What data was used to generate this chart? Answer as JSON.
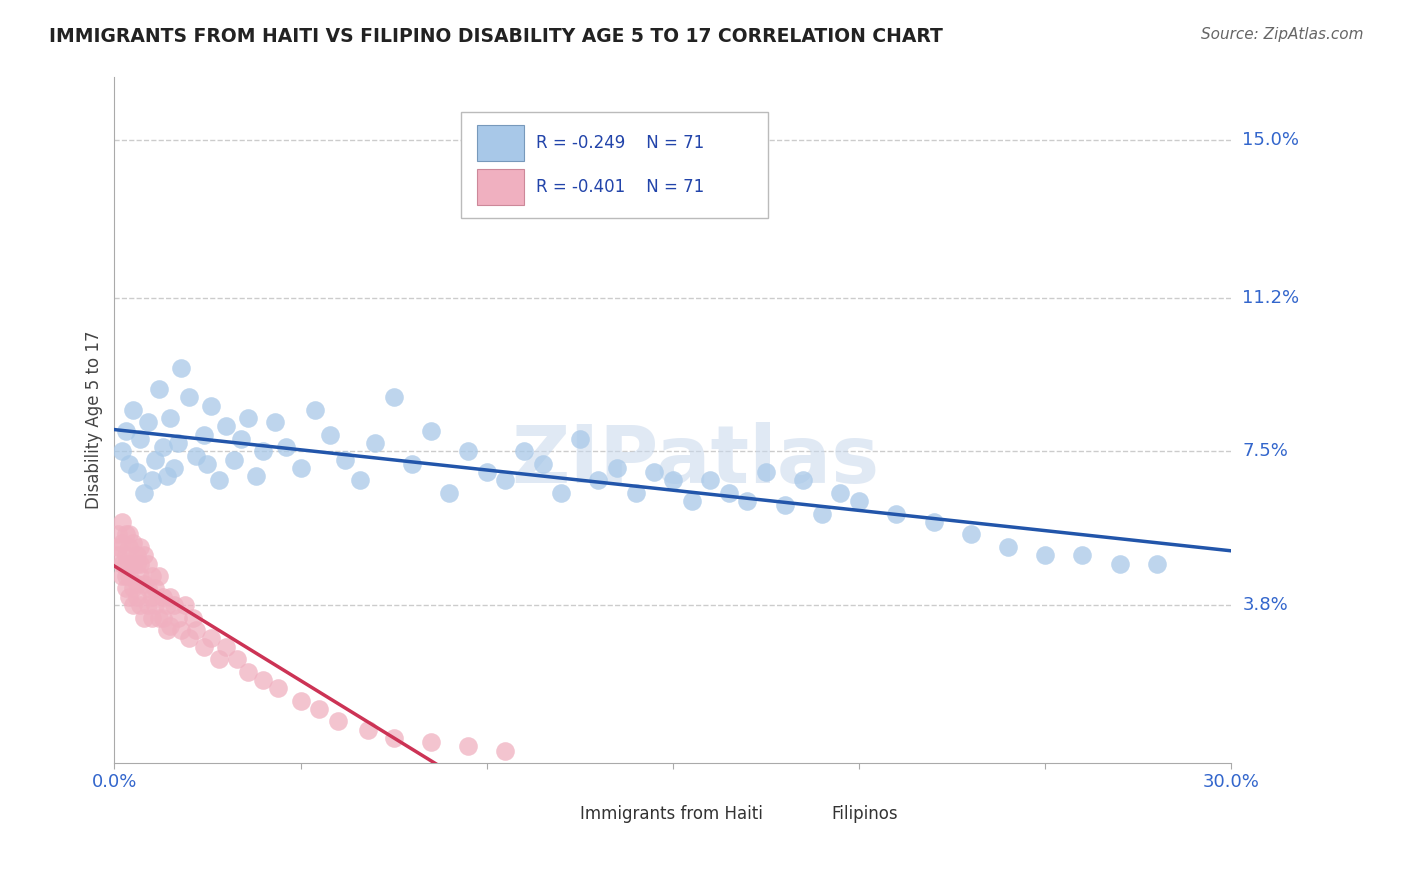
{
  "title": "IMMIGRANTS FROM HAITI VS FILIPINO DISABILITY AGE 5 TO 17 CORRELATION CHART",
  "source": "Source: ZipAtlas.com",
  "ylabel": "Disability Age 5 to 17",
  "xlim": [
    0.0,
    0.3
  ],
  "ylim": [
    0.0,
    0.165
  ],
  "xticks": [
    0.0,
    0.05,
    0.1,
    0.15,
    0.2,
    0.25,
    0.3
  ],
  "xticklabels": [
    "0.0%",
    "",
    "",
    "",
    "",
    "",
    "30.0%"
  ],
  "ytick_positions": [
    0.038,
    0.075,
    0.112,
    0.15
  ],
  "ytick_labels": [
    "3.8%",
    "7.5%",
    "11.2%",
    "15.0%"
  ],
  "haiti_R": -0.249,
  "haiti_N": 71,
  "filipino_R": -0.401,
  "filipino_N": 71,
  "haiti_color": "#a8c8e8",
  "haiti_line_color": "#2255aa",
  "filipino_color": "#f0b0c0",
  "filipino_line_color": "#cc3355",
  "watermark": "ZIPatlas",
  "grid_color": "#cccccc",
  "haiti_scatter_x": [
    0.002,
    0.003,
    0.004,
    0.005,
    0.006,
    0.007,
    0.008,
    0.009,
    0.01,
    0.011,
    0.012,
    0.013,
    0.014,
    0.015,
    0.016,
    0.017,
    0.018,
    0.02,
    0.022,
    0.024,
    0.025,
    0.026,
    0.028,
    0.03,
    0.032,
    0.034,
    0.036,
    0.038,
    0.04,
    0.043,
    0.046,
    0.05,
    0.054,
    0.058,
    0.062,
    0.066,
    0.07,
    0.075,
    0.08,
    0.085,
    0.09,
    0.095,
    0.1,
    0.105,
    0.11,
    0.115,
    0.12,
    0.125,
    0.13,
    0.135,
    0.14,
    0.145,
    0.15,
    0.155,
    0.16,
    0.165,
    0.17,
    0.175,
    0.18,
    0.185,
    0.19,
    0.195,
    0.2,
    0.21,
    0.22,
    0.23,
    0.24,
    0.25,
    0.26,
    0.27,
    0.28
  ],
  "haiti_scatter_y": [
    0.075,
    0.08,
    0.072,
    0.085,
    0.07,
    0.078,
    0.065,
    0.082,
    0.068,
    0.073,
    0.09,
    0.076,
    0.069,
    0.083,
    0.071,
    0.077,
    0.095,
    0.088,
    0.074,
    0.079,
    0.072,
    0.086,
    0.068,
    0.081,
    0.073,
    0.078,
    0.083,
    0.069,
    0.075,
    0.082,
    0.076,
    0.071,
    0.085,
    0.079,
    0.073,
    0.068,
    0.077,
    0.088,
    0.072,
    0.08,
    0.065,
    0.075,
    0.07,
    0.068,
    0.075,
    0.072,
    0.065,
    0.078,
    0.068,
    0.071,
    0.065,
    0.07,
    0.068,
    0.063,
    0.068,
    0.065,
    0.063,
    0.07,
    0.062,
    0.068,
    0.06,
    0.065,
    0.063,
    0.06,
    0.058,
    0.055,
    0.052,
    0.05,
    0.05,
    0.048,
    0.048
  ],
  "filipino_scatter_x": [
    0.001,
    0.001,
    0.001,
    0.002,
    0.002,
    0.002,
    0.002,
    0.003,
    0.003,
    0.003,
    0.003,
    0.003,
    0.004,
    0.004,
    0.004,
    0.004,
    0.004,
    0.005,
    0.005,
    0.005,
    0.005,
    0.006,
    0.006,
    0.006,
    0.006,
    0.007,
    0.007,
    0.007,
    0.007,
    0.008,
    0.008,
    0.008,
    0.009,
    0.009,
    0.009,
    0.01,
    0.01,
    0.01,
    0.011,
    0.011,
    0.012,
    0.012,
    0.013,
    0.013,
    0.014,
    0.014,
    0.015,
    0.015,
    0.016,
    0.017,
    0.018,
    0.019,
    0.02,
    0.021,
    0.022,
    0.024,
    0.026,
    0.028,
    0.03,
    0.033,
    0.036,
    0.04,
    0.044,
    0.05,
    0.055,
    0.06,
    0.068,
    0.075,
    0.085,
    0.095,
    0.105
  ],
  "filipino_scatter_y": [
    0.052,
    0.055,
    0.05,
    0.058,
    0.048,
    0.053,
    0.045,
    0.055,
    0.048,
    0.042,
    0.05,
    0.045,
    0.048,
    0.055,
    0.04,
    0.052,
    0.045,
    0.048,
    0.042,
    0.053,
    0.038,
    0.048,
    0.043,
    0.05,
    0.04,
    0.045,
    0.052,
    0.038,
    0.048,
    0.043,
    0.05,
    0.035,
    0.042,
    0.048,
    0.038,
    0.045,
    0.04,
    0.035,
    0.042,
    0.038,
    0.045,
    0.035,
    0.04,
    0.035,
    0.038,
    0.032,
    0.04,
    0.033,
    0.038,
    0.035,
    0.032,
    0.038,
    0.03,
    0.035,
    0.032,
    0.028,
    0.03,
    0.025,
    0.028,
    0.025,
    0.022,
    0.02,
    0.018,
    0.015,
    0.013,
    0.01,
    0.008,
    0.006,
    0.005,
    0.004,
    0.003
  ],
  "filipino_line_end_x": 0.105
}
